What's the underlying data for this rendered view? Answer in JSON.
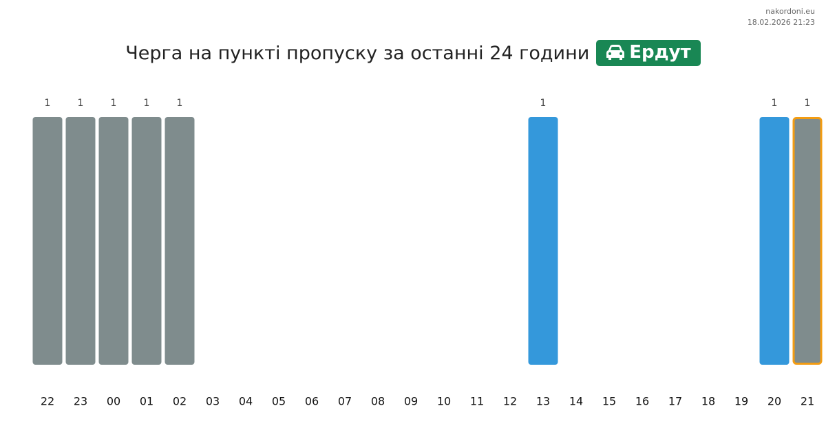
{
  "site": "nakordoni.eu",
  "timestamp": "18.02.2026 21:23",
  "chart_data": {
    "type": "bar",
    "title": "Черга на пункті пропуску за останні 24 години",
    "badge": "Ердут",
    "categories": [
      "22",
      "23",
      "00",
      "01",
      "02",
      "03",
      "04",
      "05",
      "06",
      "07",
      "08",
      "09",
      "10",
      "11",
      "12",
      "13",
      "14",
      "15",
      "16",
      "17",
      "18",
      "19",
      "20",
      "21"
    ],
    "values": [
      1,
      1,
      1,
      1,
      1,
      null,
      null,
      null,
      null,
      null,
      null,
      null,
      null,
      null,
      null,
      1,
      null,
      null,
      null,
      null,
      null,
      null,
      1,
      1
    ],
    "colors": [
      "#7f8c8d",
      "#7f8c8d",
      "#7f8c8d",
      "#7f8c8d",
      "#7f8c8d",
      null,
      null,
      null,
      null,
      null,
      null,
      null,
      null,
      null,
      null,
      "#3498db",
      null,
      null,
      null,
      null,
      null,
      null,
      "#3498db",
      "#7f8c8d"
    ],
    "highlight": {
      "index": 23,
      "color": "#f39c12"
    },
    "ylim": [
      0,
      1
    ],
    "grid": false
  }
}
